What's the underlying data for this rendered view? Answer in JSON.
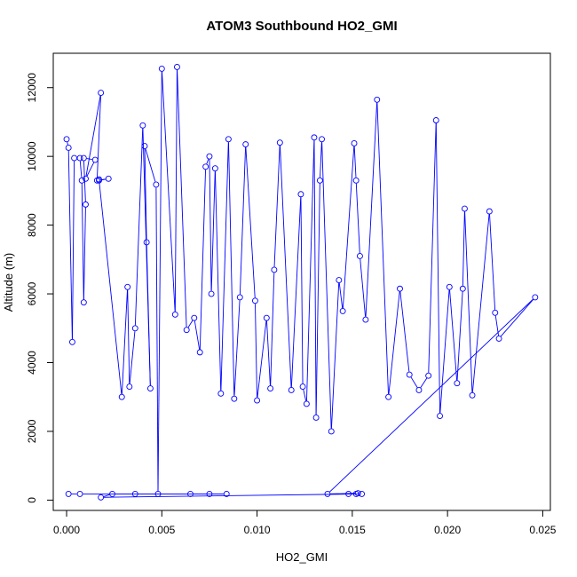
{
  "chart_data": {
    "type": "line",
    "title": "ATOM3 Southbound HO2_GMI",
    "xlabel": "HO2_GMI",
    "ylabel": "Altitude (m)",
    "xlim": [
      -0.0007,
      0.0254
    ],
    "ylim": [
      -300,
      13000
    ],
    "x_ticks": [
      0.0,
      0.005,
      0.01,
      0.015,
      0.02,
      0.025
    ],
    "x_tick_labels": [
      "0.000",
      "0.005",
      "0.010",
      "0.015",
      "0.020",
      "0.025"
    ],
    "y_ticks": [
      0,
      2000,
      4000,
      6000,
      8000,
      10000,
      12000
    ],
    "y_tick_labels": [
      "0",
      "2000",
      "4000",
      "6000",
      "8000",
      "10000",
      "12000"
    ],
    "grid": false,
    "legend": "none",
    "series": [
      {
        "color": "#0000ff",
        "marker": "open-circle",
        "x": [
          0.0,
          0.0001,
          0.0003,
          0.0004,
          0.0007,
          0.0008,
          0.0009,
          0.001,
          0.0009,
          0.0015,
          0.001,
          0.0018,
          0.0016,
          0.0022,
          0.0017,
          0.0017,
          0.0029,
          0.0032,
          0.0033,
          0.0036,
          0.004,
          0.0044,
          0.0042,
          0.0041,
          0.0047,
          0.0048,
          0.005,
          0.0057,
          0.0058,
          0.0063,
          0.0067,
          0.007,
          0.0073,
          0.0075,
          0.0076,
          0.0078,
          0.0081,
          0.0085,
          0.0088,
          0.0091,
          0.0094,
          0.0099,
          0.01,
          0.0105,
          0.0107,
          0.0109,
          0.0112,
          0.0118,
          0.0123,
          0.0124,
          0.0126,
          0.013,
          0.0131,
          0.0133,
          0.0134,
          0.0139,
          0.0143,
          0.0145,
          0.0151,
          0.0152,
          0.0154,
          0.0157,
          0.0163,
          0.0169,
          0.0175,
          0.018,
          0.0185,
          0.019,
          0.0194,
          0.0196,
          0.0201,
          0.0205,
          0.0208,
          0.0209,
          0.0213,
          0.0222,
          0.0225,
          0.0227,
          0.0246,
          0.0137,
          0.0153,
          0.0148,
          0.0152,
          0.0155,
          0.0018,
          0.0024,
          0.0036,
          0.0065,
          0.0075,
          0.0084,
          0.0007,
          0.0001
        ],
        "y": [
          10500,
          10250,
          4600,
          9950,
          9950,
          9300,
          5750,
          8600,
          9950,
          9900,
          9350,
          11850,
          9300,
          9350,
          9300,
          9330,
          3000,
          6200,
          3300,
          5000,
          10900,
          3250,
          7500,
          10300,
          9180,
          180,
          12550,
          5400,
          12600,
          4950,
          5300,
          4300,
          9700,
          10000,
          6000,
          9650,
          3100,
          10500,
          2950,
          5900,
          10350,
          5800,
          2900,
          5300,
          3250,
          6700,
          10400,
          3200,
          8900,
          3300,
          2800,
          10550,
          2400,
          9300,
          10500,
          2000,
          6400,
          5500,
          10380,
          9300,
          7100,
          5250,
          11650,
          3000,
          6150,
          3650,
          3200,
          3620,
          11050,
          2450,
          6200,
          3400,
          6150,
          8480,
          3050,
          8400,
          5450,
          4700,
          5900,
          180,
          200,
          180,
          180,
          180,
          80,
          180,
          180,
          180,
          180,
          180,
          180,
          180
        ]
      }
    ]
  }
}
